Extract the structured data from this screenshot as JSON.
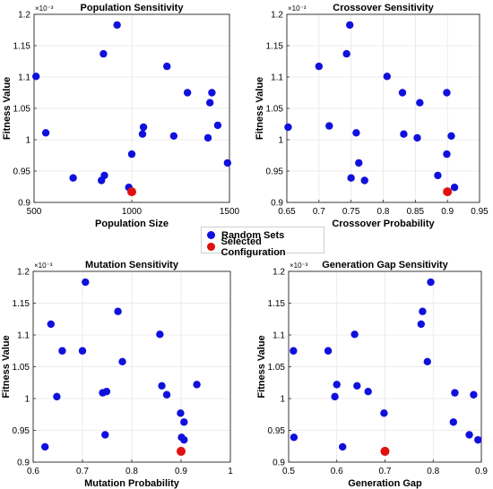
{
  "legend": {
    "random_label": "Random Sets",
    "selected_label": "Selected Configuration",
    "random_color": "#1010dd",
    "selected_color": "#e01010"
  },
  "chart_data": [
    {
      "type": "scatter",
      "title": "Population Sensitivity",
      "xlabel": "Population Size",
      "ylabel": "Fitness Value",
      "exponent_label": "×10⁻³",
      "xlim": [
        500,
        1500
      ],
      "ylim": [
        0.9,
        1.2
      ],
      "xticks": [
        500,
        1000,
        1500
      ],
      "xtick_labels": [
        "500",
        "1000",
        "1500"
      ],
      "yticks": [
        0.9,
        0.95,
        1.0,
        1.05,
        1.1,
        1.15,
        1.2
      ],
      "ytick_labels": [
        "0.9",
        "0.95",
        "1",
        "1.05",
        "1.1",
        "1.15",
        "1.2"
      ],
      "grid": true,
      "series": [
        {
          "name": "Random Sets",
          "points": [
            [
              510,
              1.101
            ],
            [
              560,
              1.011
            ],
            [
              700,
              0.939
            ],
            [
              845,
              0.935
            ],
            [
              855,
              1.137
            ],
            [
              860,
              0.943
            ],
            [
              925,
              1.183
            ],
            [
              985,
              0.924
            ],
            [
              1000,
              0.977
            ],
            [
              1055,
              1.009
            ],
            [
              1060,
              1.02
            ],
            [
              1180,
              1.117
            ],
            [
              1215,
              1.006
            ],
            [
              1285,
              1.075
            ],
            [
              1390,
              1.003
            ],
            [
              1400,
              1.059
            ],
            [
              1410,
              1.075
            ],
            [
              1440,
              1.023
            ],
            [
              1490,
              0.963
            ]
          ]
        },
        {
          "name": "Selected Configuration",
          "points": [
            [
              1000,
              0.917
            ]
          ]
        }
      ]
    },
    {
      "type": "scatter",
      "title": "Crossover Sensitivity",
      "xlabel": "Crossover Probability",
      "ylabel": "Fitness Value",
      "exponent_label": "×10⁻³",
      "xlim": [
        0.65,
        0.95
      ],
      "ylim": [
        0.9,
        1.2
      ],
      "xticks": [
        0.65,
        0.7,
        0.75,
        0.8,
        0.85,
        0.9,
        0.95
      ],
      "xtick_labels": [
        "0.65",
        "0.7",
        "0.75",
        "0.8",
        "0.85",
        "0.9",
        "0.95"
      ],
      "yticks": [
        0.9,
        0.95,
        1.0,
        1.05,
        1.1,
        1.15,
        1.2
      ],
      "ytick_labels": [
        "0.9",
        "0.95",
        "1",
        "1.05",
        "1.1",
        "1.15",
        "1.2"
      ],
      "grid": true,
      "series": [
        {
          "name": "Random Sets",
          "points": [
            [
              0.652,
              1.02
            ],
            [
              0.7,
              1.117
            ],
            [
              0.716,
              1.022
            ],
            [
              0.743,
              1.137
            ],
            [
              0.748,
              1.183
            ],
            [
              0.75,
              0.939
            ],
            [
              0.758,
              1.011
            ],
            [
              0.762,
              0.963
            ],
            [
              0.771,
              0.935
            ],
            [
              0.806,
              1.101
            ],
            [
              0.83,
              1.075
            ],
            [
              0.832,
              1.009
            ],
            [
              0.853,
              1.003
            ],
            [
              0.857,
              1.059
            ],
            [
              0.885,
              0.943
            ],
            [
              0.899,
              1.075
            ],
            [
              0.899,
              0.977
            ],
            [
              0.906,
              1.006
            ],
            [
              0.911,
              0.924
            ]
          ]
        },
        {
          "name": "Selected Configuration",
          "points": [
            [
              0.9,
              0.917
            ]
          ]
        }
      ]
    },
    {
      "type": "scatter",
      "title": "Mutation Sensitivity",
      "xlabel": "Mutation Probability",
      "ylabel": "Fitness Value",
      "exponent_label": "×10⁻³",
      "xlim": [
        0.6,
        1.0
      ],
      "ylim": [
        0.9,
        1.2
      ],
      "xticks": [
        0.6,
        0.7,
        0.8,
        0.9,
        1.0
      ],
      "xtick_labels": [
        "0.6",
        "0.7",
        "0.8",
        "0.9",
        "1"
      ],
      "yticks": [
        0.9,
        0.95,
        1.0,
        1.05,
        1.1,
        1.15,
        1.2
      ],
      "ytick_labels": [
        "0.9",
        "0.95",
        "1",
        "1.05",
        "1.1",
        "1.15",
        "1.2"
      ],
      "grid": true,
      "series": [
        {
          "name": "Random Sets",
          "points": [
            [
              0.624,
              0.924
            ],
            [
              0.636,
              1.117
            ],
            [
              0.648,
              1.003
            ],
            [
              0.659,
              1.075
            ],
            [
              0.7,
              1.075
            ],
            [
              0.706,
              1.183
            ],
            [
              0.741,
              1.009
            ],
            [
              0.746,
              0.943
            ],
            [
              0.749,
              1.011
            ],
            [
              0.772,
              1.137
            ],
            [
              0.781,
              1.058
            ],
            [
              0.857,
              1.101
            ],
            [
              0.861,
              1.02
            ],
            [
              0.871,
              1.006
            ],
            [
              0.899,
              0.977
            ],
            [
              0.901,
              0.939
            ],
            [
              0.906,
              0.963
            ],
            [
              0.906,
              0.935
            ],
            [
              0.932,
              1.022
            ]
          ]
        },
        {
          "name": "Selected Configuration",
          "points": [
            [
              0.9,
              0.917
            ]
          ]
        }
      ]
    },
    {
      "type": "scatter",
      "title": "Generation Gap Sensitivity",
      "xlabel": "Generation Gap",
      "ylabel": "Fitness Value",
      "exponent_label": "×10⁻³",
      "xlim": [
        0.5,
        0.9
      ],
      "ylim": [
        0.9,
        1.2
      ],
      "xticks": [
        0.5,
        0.6,
        0.7,
        0.8,
        0.9
      ],
      "xtick_labels": [
        "0.5",
        "0.6",
        "0.7",
        "0.8",
        "0.9"
      ],
      "yticks": [
        0.9,
        0.95,
        1.0,
        1.05,
        1.1,
        1.15,
        1.2
      ],
      "ytick_labels": [
        "0.9",
        "0.95",
        "1",
        "1.05",
        "1.1",
        "1.15",
        "1.2"
      ],
      "grid": true,
      "series": [
        {
          "name": "Random Sets",
          "points": [
            [
              0.51,
              1.075
            ],
            [
              0.511,
              0.939
            ],
            [
              0.582,
              1.075
            ],
            [
              0.596,
              1.003
            ],
            [
              0.6,
              1.022
            ],
            [
              0.612,
              0.924
            ],
            [
              0.637,
              1.101
            ],
            [
              0.642,
              1.02
            ],
            [
              0.665,
              1.011
            ],
            [
              0.698,
              0.977
            ],
            [
              0.775,
              1.117
            ],
            [
              0.778,
              1.137
            ],
            [
              0.788,
              1.058
            ],
            [
              0.795,
              1.183
            ],
            [
              0.842,
              0.963
            ],
            [
              0.845,
              1.009
            ],
            [
              0.875,
              0.943
            ],
            [
              0.884,
              1.006
            ],
            [
              0.893,
              0.935
            ]
          ]
        },
        {
          "name": "Selected Configuration",
          "points": [
            [
              0.7,
              0.917
            ]
          ]
        }
      ]
    }
  ]
}
